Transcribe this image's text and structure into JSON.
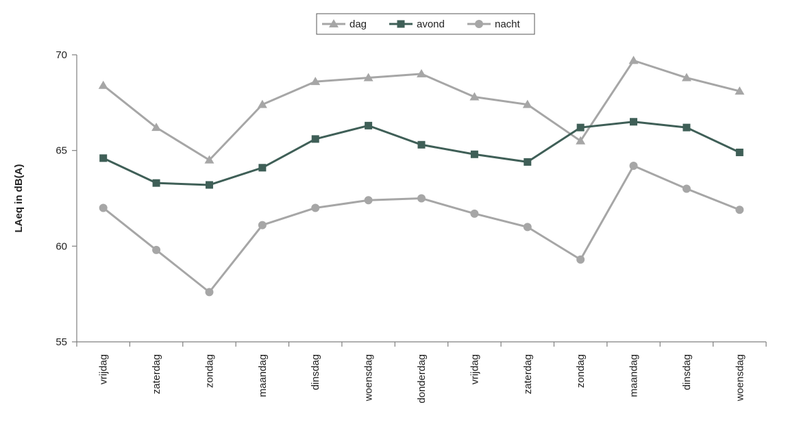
{
  "chart_data": {
    "type": "line",
    "categories": [
      "vrijdag",
      "zaterdag",
      "zondag",
      "maandag",
      "dinsdag",
      "woensdag",
      "donderdag",
      "vrijdag",
      "zaterdag",
      "zondag",
      "maandag",
      "dinsdag",
      "woensdag"
    ],
    "series": [
      {
        "name": "dag",
        "marker": "triangle",
        "color": "#a6a6a6",
        "values": [
          68.4,
          66.2,
          64.5,
          67.4,
          68.6,
          68.8,
          69.0,
          67.8,
          67.4,
          65.5,
          69.7,
          68.8,
          68.1
        ]
      },
      {
        "name": "avond",
        "marker": "square",
        "color": "#3f5f57",
        "values": [
          64.6,
          63.3,
          63.2,
          64.1,
          65.6,
          66.3,
          65.3,
          64.8,
          64.4,
          66.2,
          66.5,
          66.2,
          64.9
        ]
      },
      {
        "name": "nacht",
        "marker": "circle",
        "color": "#a6a6a6",
        "values": [
          62.0,
          59.8,
          57.6,
          61.1,
          62.0,
          62.4,
          62.5,
          61.7,
          61.0,
          59.3,
          64.2,
          63.0,
          61.9
        ]
      }
    ],
    "ylabel": "LAeq in dB(A)",
    "xlabel": "",
    "ylim": [
      55,
      70
    ],
    "yticks": [
      55,
      60,
      65,
      70
    ],
    "grid": false,
    "legend_position": "top-center"
  }
}
